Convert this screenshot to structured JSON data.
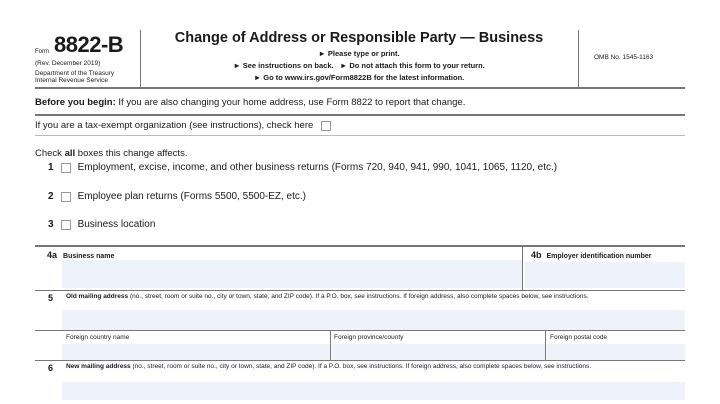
{
  "header": {
    "form_label": "Form",
    "form_number": "8822-B",
    "revision": "(Rev. December 2019)",
    "department": "Department of the Treasury",
    "service": "Internal Revenue Service",
    "title": "Change of Address or Responsible Party — Business",
    "instructions": [
      "► Please type or print.",
      "► See instructions on back.   ► Do not attach this form to your return.",
      "► Go to www.irs.gov/Form8822B for the latest information."
    ],
    "omb": "OMB No. 1545-1163"
  },
  "before_begin": {
    "label": "Before you begin:",
    "text": " If you are also changing your home address, use Form 8822 to report that change."
  },
  "tax_exempt": {
    "text": "If you are a tax-exempt organization (see instructions), check here",
    "checked": false
  },
  "check_all": {
    "prefix": "Check ",
    "bold": "all",
    "suffix": " boxes this change affects."
  },
  "items": [
    {
      "num": "1",
      "label": "Employment, excise, income, and other business returns (Forms 720, 940, 941, 990, 1041, 1065, 1120, etc.)",
      "checked": false
    },
    {
      "num": "2",
      "label": "Employee plan returns (Forms 5500, 5500-EZ, etc.)",
      "checked": false
    },
    {
      "num": "3",
      "label": "Business location",
      "checked": false
    }
  ],
  "fields": {
    "f4a": {
      "num": "4a",
      "label": "Business name",
      "value": ""
    },
    "f4b": {
      "num": "4b",
      "label": "Employer identification number",
      "value": ""
    },
    "f5": {
      "num": "5",
      "label": "Old mailing address",
      "desc": " (no., street, room or suite no., city or town, state, and ZIP code). If a P.O. box, see instructions. If foreign address, also complete spaces below, see instructions.",
      "value": ""
    },
    "foreign_country": "Foreign country name",
    "foreign_province": "Foreign province/county",
    "foreign_postal": "Foreign postal code",
    "f6": {
      "num": "6",
      "label": "New mailing address",
      "desc": " (no., street, room or suite no., city or town, state, and ZIP code). If a P.O. box, see instructions. If foreign address, also complete spaces below, see instructions.",
      "value": ""
    }
  }
}
